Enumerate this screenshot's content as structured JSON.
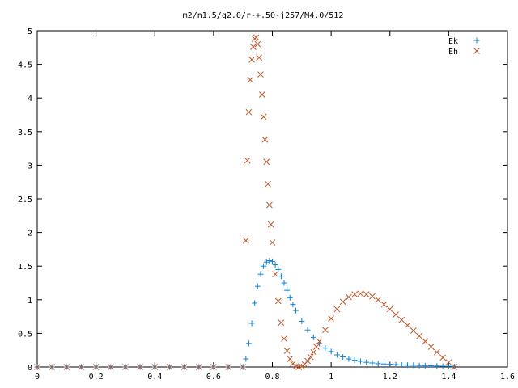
{
  "chart_data": {
    "type": "scatter",
    "title": "m2/n1.5/q2.0/r-+.50-j257/M4.0/512",
    "xlabel": "",
    "ylabel": "",
    "xlim": [
      0,
      1.6
    ],
    "ylim": [
      0,
      5
    ],
    "x_ticks": [
      "0",
      "0.2",
      "0.4",
      "0.6",
      "0.8",
      "1",
      "1.2",
      "1.4",
      "1.6"
    ],
    "y_ticks": [
      "0",
      "0.5",
      "1",
      "1.5",
      "2",
      "2.5",
      "3",
      "3.5",
      "4",
      "4.5",
      "5"
    ],
    "grid": false,
    "legend_position": "top-right",
    "series": [
      {
        "name": "Ek",
        "marker": "plus",
        "color": "#0a83d8",
        "x": [
          0.0,
          0.05,
          0.1,
          0.15,
          0.2,
          0.25,
          0.3,
          0.35,
          0.4,
          0.45,
          0.5,
          0.55,
          0.6,
          0.65,
          0.7,
          0.71,
          0.72,
          0.73,
          0.74,
          0.75,
          0.76,
          0.77,
          0.78,
          0.79,
          0.8,
          0.81,
          0.82,
          0.83,
          0.84,
          0.85,
          0.86,
          0.87,
          0.88,
          0.9,
          0.92,
          0.94,
          0.96,
          0.98,
          1.0,
          1.02,
          1.04,
          1.06,
          1.08,
          1.1,
          1.12,
          1.14,
          1.16,
          1.18,
          1.2,
          1.22,
          1.24,
          1.26,
          1.28,
          1.3,
          1.32,
          1.34,
          1.36,
          1.38,
          1.4,
          1.42
        ],
        "y": [
          0,
          0,
          0,
          0,
          0,
          0,
          0,
          0,
          0,
          0,
          0,
          0,
          0,
          0,
          0,
          0.12,
          0.35,
          0.65,
          0.95,
          1.2,
          1.38,
          1.5,
          1.56,
          1.58,
          1.57,
          1.52,
          1.45,
          1.35,
          1.25,
          1.14,
          1.03,
          0.93,
          0.84,
          0.68,
          0.55,
          0.44,
          0.35,
          0.28,
          0.23,
          0.18,
          0.15,
          0.12,
          0.1,
          0.085,
          0.07,
          0.06,
          0.05,
          0.045,
          0.04,
          0.035,
          0.03,
          0.028,
          0.025,
          0.022,
          0.02,
          0.018,
          0.015,
          0.012,
          0.01,
          0.005
        ]
      },
      {
        "name": "Eh",
        "marker": "cross",
        "color": "#c0572a",
        "x": [
          0.0,
          0.05,
          0.1,
          0.15,
          0.2,
          0.25,
          0.3,
          0.35,
          0.4,
          0.45,
          0.5,
          0.55,
          0.6,
          0.65,
          0.7,
          0.71,
          0.715,
          0.72,
          0.725,
          0.73,
          0.735,
          0.74,
          0.745,
          0.75,
          0.755,
          0.76,
          0.765,
          0.77,
          0.775,
          0.78,
          0.785,
          0.79,
          0.795,
          0.8,
          0.81,
          0.82,
          0.83,
          0.84,
          0.85,
          0.86,
          0.87,
          0.88,
          0.89,
          0.9,
          0.91,
          0.92,
          0.93,
          0.94,
          0.95,
          0.96,
          0.98,
          1.0,
          1.02,
          1.04,
          1.06,
          1.08,
          1.1,
          1.12,
          1.14,
          1.16,
          1.18,
          1.2,
          1.22,
          1.24,
          1.26,
          1.28,
          1.3,
          1.32,
          1.34,
          1.36,
          1.38,
          1.4,
          1.42
        ],
        "y": [
          0,
          0,
          0,
          0,
          0,
          0,
          0,
          0,
          0,
          0,
          0,
          0,
          0,
          0,
          0,
          1.88,
          3.07,
          3.79,
          4.27,
          4.57,
          4.76,
          4.88,
          4.9,
          4.8,
          4.6,
          4.35,
          4.05,
          3.72,
          3.38,
          3.05,
          2.72,
          2.41,
          2.12,
          1.85,
          1.38,
          0.98,
          0.66,
          0.42,
          0.24,
          0.12,
          0.05,
          0.01,
          0.0,
          0.01,
          0.04,
          0.09,
          0.15,
          0.22,
          0.3,
          0.38,
          0.55,
          0.72,
          0.86,
          0.97,
          1.04,
          1.08,
          1.09,
          1.08,
          1.05,
          1.0,
          0.93,
          0.86,
          0.78,
          0.7,
          0.62,
          0.54,
          0.46,
          0.38,
          0.3,
          0.22,
          0.14,
          0.07,
          0.0
        ]
      }
    ]
  }
}
